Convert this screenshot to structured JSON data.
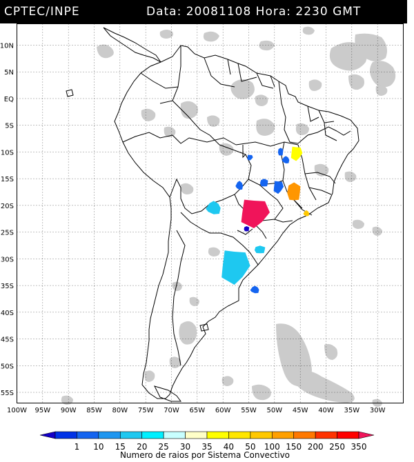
{
  "header": {
    "org": "CPTEC/INPE",
    "date_label": "Data:",
    "date": "20081108",
    "time_label": "Hora:",
    "time": "2230 GMT"
  },
  "map": {
    "lon_range": [
      -100,
      -25
    ],
    "lat_range": [
      -57,
      14
    ],
    "lat_labels": [
      "10N",
      "5N",
      "EQ",
      "5S",
      "10S",
      "15S",
      "20S",
      "25S",
      "30S",
      "35S",
      "40S",
      "45S",
      "50S",
      "55S"
    ],
    "lon_labels": [
      "100W",
      "95W",
      "90W",
      "85W",
      "80W",
      "75W",
      "70W",
      "65W",
      "60W",
      "55W",
      "50W",
      "45W",
      "40W",
      "35W",
      "30W"
    ],
    "grid": "dotted",
    "cloud_color": "#bfbfbf",
    "lightning_cells": [
      {
        "lon": -45.8,
        "lat": -10.2,
        "color": "#ffff00"
      },
      {
        "lon": -48.8,
        "lat": -10.0,
        "color": "#1464f0"
      },
      {
        "lon": -47.8,
        "lat": -11.5,
        "color": "#1464f0"
      },
      {
        "lon": -54.8,
        "lat": -11.0,
        "color": "#1464f0"
      },
      {
        "lon": -52.0,
        "lat": -15.8,
        "color": "#1464f0"
      },
      {
        "lon": -56.8,
        "lat": -16.3,
        "color": "#1464f0"
      },
      {
        "lon": -49.3,
        "lat": -16.5,
        "color": "#1464f0"
      },
      {
        "lon": -46.2,
        "lat": -17.5,
        "color": "#ff9600"
      },
      {
        "lon": -43.8,
        "lat": -21.5,
        "color": "#ffc800"
      },
      {
        "lon": -54.0,
        "lat": -21.3,
        "color": "#f0145a"
      },
      {
        "lon": -55.4,
        "lat": -24.4,
        "color": "#1400c8"
      },
      {
        "lon": -61.8,
        "lat": -20.5,
        "color": "#1ec8f0"
      },
      {
        "lon": -57.8,
        "lat": -31.3,
        "color": "#1ec8f0"
      },
      {
        "lon": -52.8,
        "lat": -28.3,
        "color": "#1ec8f0"
      },
      {
        "lon": -53.8,
        "lat": -35.8,
        "color": "#1464f0"
      }
    ]
  },
  "legend": {
    "ticks": [
      "1",
      "10",
      "15",
      "20",
      "25",
      "30",
      "35",
      "40",
      "50",
      "100",
      "150",
      "200",
      "250",
      "350"
    ],
    "colors": [
      "#1400c8",
      "#0032e6",
      "#1464f0",
      "#1e96f0",
      "#1ec8f0",
      "#00f0ff",
      "#c8ffff",
      "#ffffc8",
      "#ffff00",
      "#ffe600",
      "#ffc800",
      "#ffa000",
      "#ff7800",
      "#ff3200",
      "#ff0000",
      "#f0145a"
    ],
    "caption": "Numero de raios por Sistema Convectivo"
  }
}
